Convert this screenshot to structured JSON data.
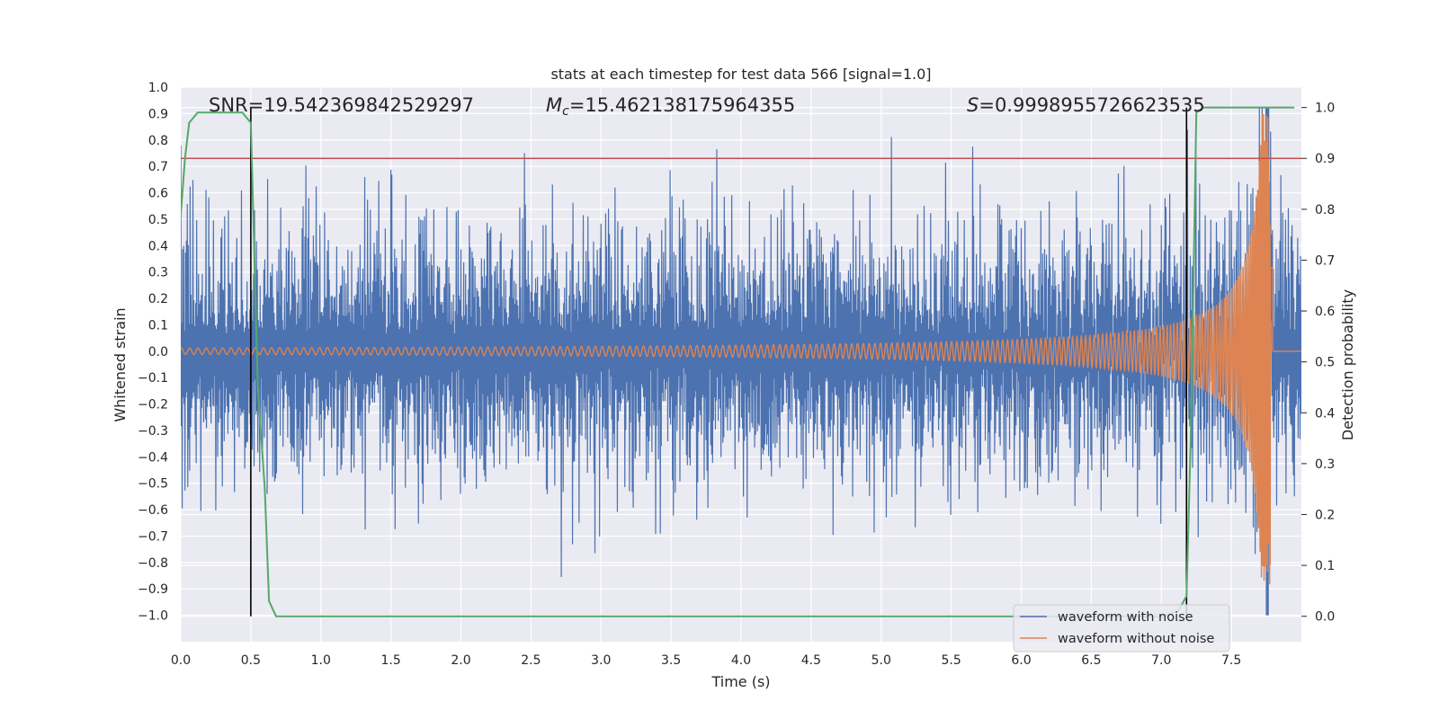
{
  "chart_data": {
    "type": "line",
    "title": "stats at each timestep for test data 566 [signal=1.0]",
    "xlabel": "Time (s)",
    "ylabel": "Whitened strain",
    "y2label": "Detection probability",
    "xlim": [
      0.0,
      8.0
    ],
    "ylim": [
      -1.1,
      1.0
    ],
    "y2lim": [
      -0.05,
      1.04
    ],
    "xticks": [
      "0.0",
      "0.5",
      "1.0",
      "1.5",
      "2.0",
      "2.5",
      "3.0",
      "3.5",
      "4.0",
      "4.5",
      "5.0",
      "5.5",
      "6.0",
      "6.5",
      "7.0",
      "7.5"
    ],
    "yticks": [
      "1.0",
      "0.9",
      "0.8",
      "0.7",
      "0.6",
      "0.5",
      "0.4",
      "0.3",
      "0.2",
      "0.1",
      "0.0",
      "−0.1",
      "−0.2",
      "−0.3",
      "−0.4",
      "−0.5",
      "−0.6",
      "−0.7",
      "−0.8",
      "−0.9",
      "−1.0"
    ],
    "y2ticks": [
      "1.0",
      "0.9",
      "0.8",
      "0.7",
      "0.6",
      "0.5",
      "0.4",
      "0.3",
      "0.2",
      "0.1",
      "0.0"
    ],
    "annotations": {
      "snr": "SNR=19.542369842529297",
      "mc_symbol": "M",
      "mc_sub": "c",
      "mc_value": "=15.462138175964355",
      "s_symbol": "S",
      "s_value": "=0.9998955726623535"
    },
    "threshold": 0.9,
    "vlines": [
      0.5,
      7.18
    ],
    "series": [
      {
        "name": "waveform with noise",
        "color": "#4c72b0",
        "axis": "left",
        "envelope": {
          "typical_amplitude": 0.35,
          "peak_amplitude": 0.92,
          "duration": 8.0
        }
      },
      {
        "name": "waveform without noise",
        "color": "#dd8452",
        "axis": "left",
        "chirp": {
          "start_amplitude": 0.012,
          "peak_amplitude": 0.9,
          "merger_time": 7.78,
          "start_frequency_hz": 8
        }
      },
      {
        "name": "detection probability",
        "color": "#55a868",
        "axis": "right",
        "x": [
          0.0,
          0.03,
          0.06,
          0.12,
          0.25,
          0.44,
          0.5,
          0.55,
          0.6,
          0.63,
          0.68,
          1.0,
          2.0,
          3.0,
          3.5,
          4.0,
          5.0,
          6.0,
          7.0,
          7.12,
          7.18,
          7.21,
          7.25,
          7.3,
          7.5,
          7.8,
          7.95
        ],
        "y": [
          0.79,
          0.9,
          0.97,
          0.99,
          0.99,
          0.99,
          0.97,
          0.45,
          0.25,
          0.03,
          0.0,
          0.0,
          0.0,
          0.0,
          0.0,
          0.0,
          0.0,
          0.0,
          0.0,
          0.01,
          0.04,
          0.35,
          0.99,
          1.0,
          1.0,
          1.0,
          1.0
        ]
      },
      {
        "name": "threshold",
        "color": "#c44e52",
        "axis": "right"
      }
    ],
    "legend": {
      "location": "lower-right",
      "entries": [
        "waveform with noise",
        "waveform without noise"
      ]
    }
  }
}
